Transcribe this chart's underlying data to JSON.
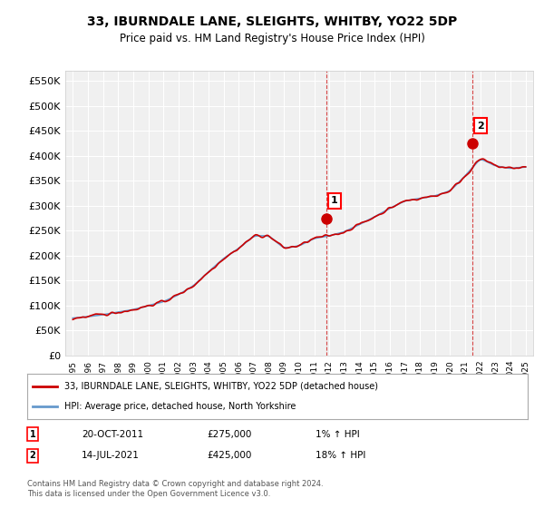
{
  "title": "33, IBURNDALE LANE, SLEIGHTS, WHITBY, YO22 5DP",
  "subtitle": "Price paid vs. HM Land Registry's House Price Index (HPI)",
  "ylim": [
    0,
    570000
  ],
  "yticks": [
    0,
    50000,
    100000,
    150000,
    200000,
    250000,
    300000,
    350000,
    400000,
    450000,
    500000,
    550000
  ],
  "ytick_labels": [
    "£0",
    "£50K",
    "£100K",
    "£150K",
    "£200K",
    "£250K",
    "£300K",
    "£350K",
    "£400K",
    "£450K",
    "£500K",
    "£550K"
  ],
  "background_color": "#ffffff",
  "plot_bg_color": "#f0f0f0",
  "grid_color": "#ffffff",
  "red_line_color": "#cc0000",
  "blue_line_color": "#6699cc",
  "sale1_date": "20-OCT-2011",
  "sale1_price": 275000,
  "sale1_label": "1% ↑ HPI",
  "sale2_date": "14-JUL-2021",
  "sale2_price": 425000,
  "sale2_label": "18% ↑ HPI",
  "legend_line1": "33, IBURNDALE LANE, SLEIGHTS, WHITBY, YO22 5DP (detached house)",
  "legend_line2": "HPI: Average price, detached house, North Yorkshire",
  "annotation1_num": "1",
  "annotation2_num": "2",
  "table_row1": [
    "1",
    "20-OCT-2011",
    "£275,000",
    "1% ↑ HPI"
  ],
  "table_row2": [
    "2",
    "14-JUL-2021",
    "£425,000",
    "18% ↑ HPI"
  ],
  "footnote": "Contains HM Land Registry data © Crown copyright and database right 2024.\nThis data is licensed under the Open Government Licence v3.0.",
  "hpi_years": [
    1995,
    1996,
    1997,
    1998,
    1999,
    2000,
    2001,
    2002,
    2003,
    2004,
    2005,
    2006,
    2007,
    2008,
    2009,
    2010,
    2011,
    2012,
    2013,
    2014,
    2015,
    2016,
    2017,
    2018,
    2019,
    2020,
    2021,
    2022,
    2023,
    2024,
    2025
  ],
  "hpi_values": [
    75000,
    78000,
    82000,
    87000,
    92000,
    100000,
    108000,
    122000,
    140000,
    168000,
    195000,
    215000,
    240000,
    240000,
    215000,
    220000,
    235000,
    240000,
    248000,
    263000,
    278000,
    295000,
    310000,
    315000,
    320000,
    330000,
    360000,
    395000,
    380000,
    375000,
    378000
  ],
  "sale1_x": 2011.8,
  "sale2_x": 2021.5
}
